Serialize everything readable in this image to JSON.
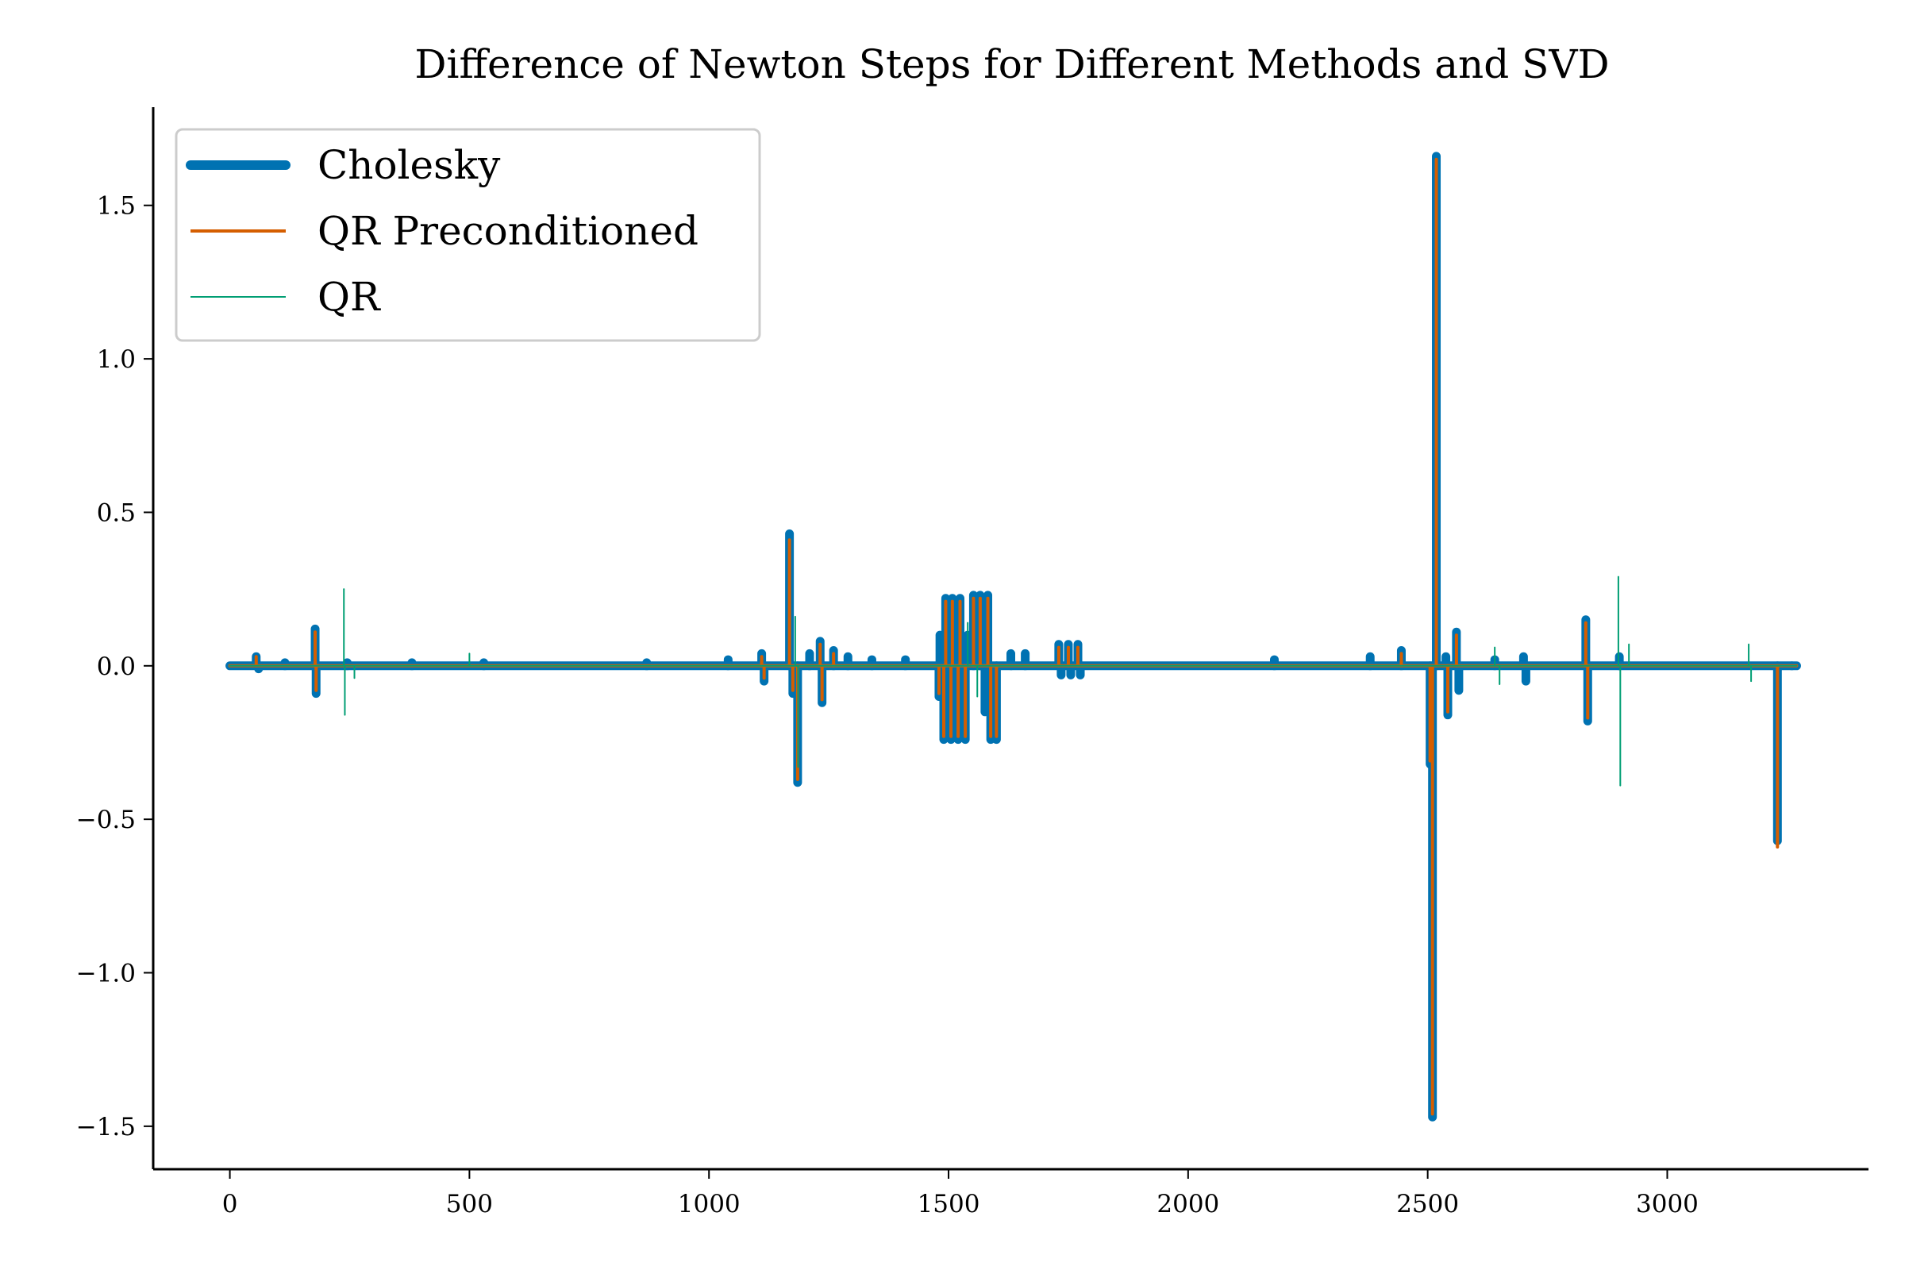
{
  "chart_data": {
    "type": "line",
    "title": "Difference of Newton Steps for Different Methods and SVD",
    "xlabel": "",
    "ylabel": "",
    "xlim": [
      -160,
      3420
    ],
    "ylim": [
      -1.64,
      1.82
    ],
    "xticks": [
      0,
      500,
      1000,
      1500,
      2000,
      2500,
      3000
    ],
    "yticks": [
      -1.5,
      -1.0,
      -0.5,
      0.0,
      0.5,
      1.0,
      1.5
    ],
    "xtick_labels": [
      "0",
      "500",
      "1000",
      "1500",
      "2000",
      "2500",
      "3000"
    ],
    "ytick_labels": [
      "−1.5",
      "−1.0",
      "−0.5",
      "0.0",
      "0.5",
      "1.0",
      "1.5"
    ],
    "grid": false,
    "legend_position": "top-left",
    "x_extent": [
      0,
      3270
    ],
    "series": [
      {
        "name": "Cholesky",
        "color": "#0072B2",
        "linewidth": "thick",
        "spikes": [
          {
            "x": 55,
            "y": 0.03
          },
          {
            "x": 60,
            "y": -0.01
          },
          {
            "x": 115,
            "y": 0.01
          },
          {
            "x": 178,
            "y": 0.12
          },
          {
            "x": 180,
            "y": -0.09
          },
          {
            "x": 245,
            "y": 0.01
          },
          {
            "x": 380,
            "y": 0.01
          },
          {
            "x": 530,
            "y": 0.01
          },
          {
            "x": 870,
            "y": 0.01
          },
          {
            "x": 1040,
            "y": 0.02
          },
          {
            "x": 1110,
            "y": 0.04
          },
          {
            "x": 1115,
            "y": -0.05
          },
          {
            "x": 1168,
            "y": 0.43
          },
          {
            "x": 1175,
            "y": -0.09
          },
          {
            "x": 1185,
            "y": -0.38
          },
          {
            "x": 1210,
            "y": 0.04
          },
          {
            "x": 1232,
            "y": 0.08
          },
          {
            "x": 1236,
            "y": -0.12
          },
          {
            "x": 1260,
            "y": 0.05
          },
          {
            "x": 1290,
            "y": 0.03
          },
          {
            "x": 1340,
            "y": 0.02
          },
          {
            "x": 1410,
            "y": 0.02
          },
          {
            "x": 1480,
            "y": -0.1
          },
          {
            "x": 1482,
            "y": 0.1
          },
          {
            "x": 1490,
            "y": -0.24
          },
          {
            "x": 1494,
            "y": 0.22
          },
          {
            "x": 1505,
            "y": -0.24
          },
          {
            "x": 1508,
            "y": 0.22
          },
          {
            "x": 1520,
            "y": -0.24
          },
          {
            "x": 1524,
            "y": 0.22
          },
          {
            "x": 1535,
            "y": -0.24
          },
          {
            "x": 1540,
            "y": 0.1
          },
          {
            "x": 1552,
            "y": 0.23
          },
          {
            "x": 1566,
            "y": 0.23
          },
          {
            "x": 1576,
            "y": -0.15
          },
          {
            "x": 1582,
            "y": 0.23
          },
          {
            "x": 1588,
            "y": -0.24
          },
          {
            "x": 1600,
            "y": -0.24
          },
          {
            "x": 1630,
            "y": 0.04
          },
          {
            "x": 1660,
            "y": 0.04
          },
          {
            "x": 1730,
            "y": 0.07
          },
          {
            "x": 1735,
            "y": -0.03
          },
          {
            "x": 1750,
            "y": 0.07
          },
          {
            "x": 1755,
            "y": -0.03
          },
          {
            "x": 1770,
            "y": 0.07
          },
          {
            "x": 1775,
            "y": -0.03
          },
          {
            "x": 2180,
            "y": 0.02
          },
          {
            "x": 2380,
            "y": 0.03
          },
          {
            "x": 2445,
            "y": 0.05
          },
          {
            "x": 2505,
            "y": -0.32
          },
          {
            "x": 2510,
            "y": -1.47
          },
          {
            "x": 2518,
            "y": 1.66
          },
          {
            "x": 2538,
            "y": 0.03
          },
          {
            "x": 2542,
            "y": -0.16
          },
          {
            "x": 2560,
            "y": 0.11
          },
          {
            "x": 2565,
            "y": -0.08
          },
          {
            "x": 2640,
            "y": 0.02
          },
          {
            "x": 2700,
            "y": 0.03
          },
          {
            "x": 2705,
            "y": -0.05
          },
          {
            "x": 2830,
            "y": 0.15
          },
          {
            "x": 2834,
            "y": -0.18
          },
          {
            "x": 2900,
            "y": 0.03
          },
          {
            "x": 3230,
            "y": -0.57
          },
          {
            "x": 3260,
            "y": 0.0
          }
        ]
      },
      {
        "name": "QR Preconditioned",
        "color": "#D55E00",
        "linewidth": "medium",
        "spikes": [
          {
            "x": 55,
            "y": 0.03
          },
          {
            "x": 178,
            "y": 0.11
          },
          {
            "x": 180,
            "y": -0.08
          },
          {
            "x": 1110,
            "y": 0.03
          },
          {
            "x": 1115,
            "y": -0.04
          },
          {
            "x": 1168,
            "y": 0.41
          },
          {
            "x": 1175,
            "y": -0.08
          },
          {
            "x": 1185,
            "y": -0.37
          },
          {
            "x": 1232,
            "y": 0.07
          },
          {
            "x": 1236,
            "y": -0.11
          },
          {
            "x": 1260,
            "y": 0.04
          },
          {
            "x": 1480,
            "y": -0.09
          },
          {
            "x": 1490,
            "y": -0.23
          },
          {
            "x": 1494,
            "y": 0.21
          },
          {
            "x": 1505,
            "y": -0.23
          },
          {
            "x": 1508,
            "y": 0.21
          },
          {
            "x": 1520,
            "y": -0.23
          },
          {
            "x": 1524,
            "y": 0.21
          },
          {
            "x": 1535,
            "y": -0.23
          },
          {
            "x": 1552,
            "y": 0.22
          },
          {
            "x": 1566,
            "y": 0.22
          },
          {
            "x": 1582,
            "y": 0.22
          },
          {
            "x": 1588,
            "y": -0.23
          },
          {
            "x": 1600,
            "y": -0.23
          },
          {
            "x": 1730,
            "y": 0.06
          },
          {
            "x": 1750,
            "y": 0.06
          },
          {
            "x": 1770,
            "y": 0.06
          },
          {
            "x": 2445,
            "y": 0.04
          },
          {
            "x": 2505,
            "y": -0.31
          },
          {
            "x": 2510,
            "y": -1.46
          },
          {
            "x": 2518,
            "y": 1.65
          },
          {
            "x": 2542,
            "y": -0.15
          },
          {
            "x": 2560,
            "y": 0.1
          },
          {
            "x": 2830,
            "y": 0.14
          },
          {
            "x": 2834,
            "y": -0.17
          },
          {
            "x": 3230,
            "y": -0.59
          }
        ]
      },
      {
        "name": "QR",
        "color": "#009E73",
        "linewidth": "thin",
        "spikes": [
          {
            "x": 238,
            "y": 0.25
          },
          {
            "x": 240,
            "y": -0.16
          },
          {
            "x": 260,
            "y": -0.04
          },
          {
            "x": 500,
            "y": 0.04
          },
          {
            "x": 1180,
            "y": 0.16
          },
          {
            "x": 1186,
            "y": -0.33
          },
          {
            "x": 1540,
            "y": 0.14
          },
          {
            "x": 1560,
            "y": -0.1
          },
          {
            "x": 2640,
            "y": 0.06
          },
          {
            "x": 2650,
            "y": -0.06
          },
          {
            "x": 2898,
            "y": 0.29
          },
          {
            "x": 2902,
            "y": -0.39
          },
          {
            "x": 2920,
            "y": 0.07
          },
          {
            "x": 3170,
            "y": 0.07
          },
          {
            "x": 3175,
            "y": -0.05
          }
        ]
      }
    ]
  }
}
